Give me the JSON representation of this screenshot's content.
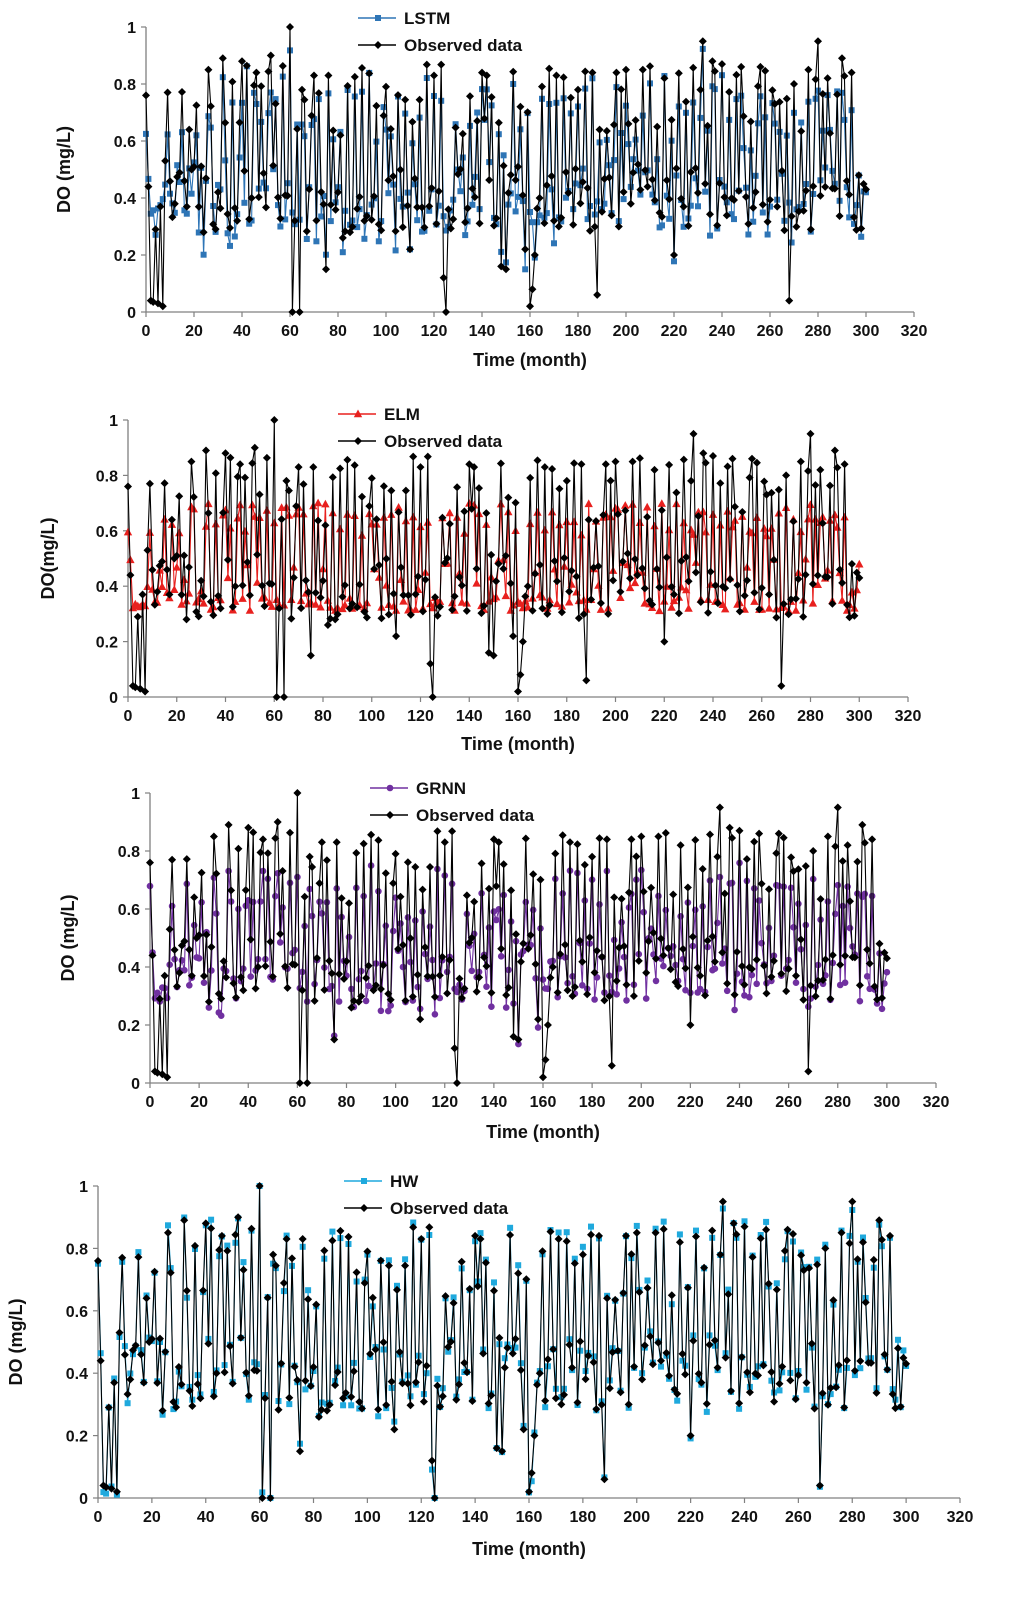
{
  "chart_data": [
    {
      "type": "line",
      "id": "lstm",
      "xlabel": "Time (month)",
      "ylabel": "DO (mg/L)",
      "xlim": [
        0,
        320
      ],
      "ylim": [
        0,
        1
      ],
      "x_ticks": [
        0,
        20,
        40,
        60,
        80,
        100,
        120,
        140,
        160,
        180,
        200,
        220,
        240,
        260,
        280,
        300,
        320
      ],
      "y_ticks": [
        0,
        0.2,
        0.4,
        0.6,
        0.8,
        1
      ],
      "legend_position": "top-center",
      "series": [
        {
          "name": "LSTM",
          "color": "#2E75B6",
          "marker": "square",
          "values": []
        },
        {
          "name": "Observed data",
          "color": "#000000",
          "marker": "diamond",
          "values": []
        }
      ]
    },
    {
      "type": "line",
      "id": "elm",
      "xlabel": "Time (month)",
      "ylabel": "DO(mg/L)",
      "xlim": [
        0,
        320
      ],
      "ylim": [
        0,
        1
      ],
      "x_ticks": [
        0,
        20,
        40,
        60,
        80,
        100,
        120,
        140,
        160,
        180,
        200,
        220,
        240,
        260,
        280,
        300,
        320
      ],
      "y_ticks": [
        0,
        0.2,
        0.4,
        0.6,
        0.8,
        1
      ],
      "legend_position": "top-center",
      "series": [
        {
          "name": "ELM",
          "color": "#E8201E",
          "marker": "triangle",
          "values": []
        },
        {
          "name": "Observed data",
          "color": "#000000",
          "marker": "diamond",
          "values": []
        }
      ]
    },
    {
      "type": "line",
      "id": "grnn",
      "xlabel": "Time (month)",
      "ylabel": "DO (mg/L)",
      "xlim": [
        0,
        320
      ],
      "ylim": [
        0,
        1
      ],
      "x_ticks": [
        0,
        20,
        40,
        60,
        80,
        100,
        120,
        140,
        160,
        180,
        200,
        220,
        240,
        260,
        280,
        300,
        320
      ],
      "y_ticks": [
        0,
        0.2,
        0.4,
        0.6,
        0.8,
        1
      ],
      "legend_position": "top-center",
      "series": [
        {
          "name": "GRNN",
          "color": "#7030A0",
          "marker": "circle",
          "values": []
        },
        {
          "name": "Observed data",
          "color": "#000000",
          "marker": "diamond",
          "values": []
        }
      ]
    },
    {
      "type": "line",
      "id": "hw",
      "xlabel": "Time (month)",
      "ylabel": "DO (mg/L)",
      "xlim": [
        0,
        320
      ],
      "ylim": [
        0,
        1
      ],
      "x_ticks": [
        0,
        20,
        40,
        60,
        80,
        100,
        120,
        140,
        160,
        180,
        200,
        220,
        240,
        260,
        280,
        300,
        320
      ],
      "y_ticks": [
        0,
        0.2,
        0.4,
        0.6,
        0.8,
        1
      ],
      "legend_position": "top-center",
      "series": [
        {
          "name": "HW",
          "color": "#1FA9DD",
          "marker": "square",
          "values": []
        },
        {
          "name": "Observed data",
          "color": "#000000",
          "marker": "diamond",
          "values": []
        }
      ]
    }
  ]
}
